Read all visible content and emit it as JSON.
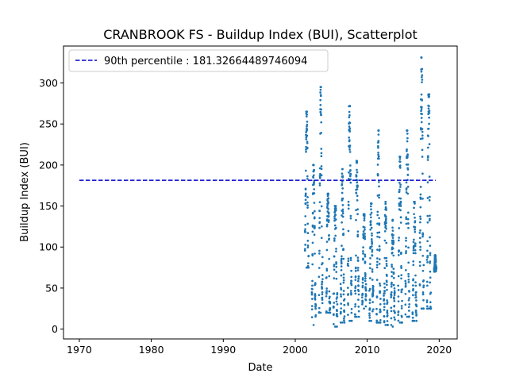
{
  "chart_data": {
    "type": "scatter",
    "title": "CRANBROOK FS - Buildup Index (BUI), Scatterplot",
    "xlabel": "Date",
    "ylabel": "Buildup Index (BUI)",
    "xlim": [
      1967.8,
      2022.5
    ],
    "ylim": [
      -12,
      345
    ],
    "xticks": [
      1970,
      1980,
      1990,
      2000,
      2010,
      2020
    ],
    "yticks": [
      0,
      50,
      100,
      150,
      200,
      250,
      300
    ],
    "grid": false,
    "legend_position": "top-left",
    "colors": {
      "points": "#1f77b4",
      "reference_line": "#0000cc"
    },
    "reference_line": {
      "label": "90th percentile : 181.32664489746094",
      "value": 181.32664489746094,
      "x_range": [
        1970,
        2019.5
      ],
      "style": "dashed"
    },
    "seasons": [
      {
        "year": 2001,
        "start": 2001.35,
        "end": 2001.85,
        "min": 75,
        "peak": 265,
        "end_value": 120
      },
      {
        "year": 2002,
        "start": 2002.3,
        "end": 2002.85,
        "min": 5,
        "peak": 200,
        "end_value": 60
      },
      {
        "year": 2003,
        "start": 2003.3,
        "end": 2003.8,
        "min": 20,
        "peak": 295,
        "end_value": 80
      },
      {
        "year": 2004,
        "start": 2004.3,
        "end": 2004.85,
        "min": 20,
        "peak": 165,
        "end_value": 40
      },
      {
        "year": 2005,
        "start": 2005.3,
        "end": 2005.85,
        "min": 3,
        "peak": 150,
        "end_value": 40
      },
      {
        "year": 2006,
        "start": 2006.3,
        "end": 2006.85,
        "min": 8,
        "peak": 195,
        "end_value": 50
      },
      {
        "year": 2007,
        "start": 2007.3,
        "end": 2007.85,
        "min": 10,
        "peak": 272,
        "end_value": 70
      },
      {
        "year": 2008,
        "start": 2008.3,
        "end": 2008.85,
        "min": 15,
        "peak": 205,
        "end_value": 50
      },
      {
        "year": 2009,
        "start": 2009.3,
        "end": 2009.85,
        "min": 25,
        "peak": 140,
        "end_value": 50
      },
      {
        "year": 2010,
        "start": 2010.3,
        "end": 2010.85,
        "min": 10,
        "peak": 153,
        "end_value": 40
      },
      {
        "year": 2011,
        "start": 2011.3,
        "end": 2011.85,
        "min": 8,
        "peak": 242,
        "end_value": 60
      },
      {
        "year": 2012,
        "start": 2012.3,
        "end": 2012.85,
        "min": 5,
        "peak": 155,
        "end_value": 40
      },
      {
        "year": 2013,
        "start": 2013.3,
        "end": 2013.85,
        "min": 3,
        "peak": 133,
        "end_value": 40
      },
      {
        "year": 2014,
        "start": 2014.3,
        "end": 2014.85,
        "min": 8,
        "peak": 210,
        "end_value": 50
      },
      {
        "year": 2015,
        "start": 2015.3,
        "end": 2015.85,
        "min": 15,
        "peak": 242,
        "end_value": 60
      },
      {
        "year": 2016,
        "start": 2016.3,
        "end": 2016.85,
        "min": 10,
        "peak": 155,
        "end_value": 50
      },
      {
        "year": 2017,
        "start": 2017.3,
        "end": 2017.85,
        "min": 25,
        "peak": 331,
        "end_value": 80
      },
      {
        "year": 2018,
        "start": 2018.3,
        "end": 2018.85,
        "min": 25,
        "peak": 286,
        "end_value": 70
      },
      {
        "year": 2019,
        "start": 2019.3,
        "end": 2019.6,
        "min": 70,
        "peak": 90,
        "end_value": 85
      }
    ]
  }
}
